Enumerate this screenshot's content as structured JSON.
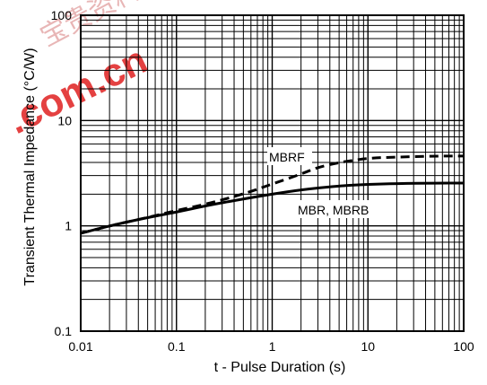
{
  "watermark": {
    "text": ".com.cn",
    "chars": "宝贵资料"
  },
  "chart_data": {
    "type": "line",
    "title": "",
    "xlabel": "t - Pulse Duration (s)",
    "ylabel": "Transient Thermal Impedance (°C/W)",
    "xscale": "log",
    "yscale": "log",
    "xlim": [
      0.01,
      100
    ],
    "ylim": [
      0.1,
      100
    ],
    "grid": true,
    "x_ticks": [
      {
        "value": 0.01,
        "label": "0.01"
      },
      {
        "value": 0.1,
        "label": "0.1"
      },
      {
        "value": 1,
        "label": "1"
      },
      {
        "value": 10,
        "label": "10"
      },
      {
        "value": 100,
        "label": "100"
      }
    ],
    "y_ticks": [
      {
        "value": 0.1,
        "label": "0.1"
      },
      {
        "value": 1,
        "label": "1"
      },
      {
        "value": 10,
        "label": "10"
      },
      {
        "value": 100,
        "label": "100"
      }
    ],
    "series": [
      {
        "name": "MBRF",
        "style": "dashed",
        "color": "#000000",
        "x": [
          0.01,
          0.02,
          0.05,
          0.1,
          0.2,
          0.5,
          1,
          2,
          3,
          5,
          10,
          20,
          50,
          100
        ],
        "y": [
          0.85,
          1.0,
          1.2,
          1.4,
          1.6,
          2.0,
          2.5,
          3.1,
          3.6,
          4.0,
          4.4,
          4.5,
          4.6,
          4.6
        ]
      },
      {
        "name": "MBR, MBRB",
        "style": "solid",
        "color": "#000000",
        "x": [
          0.01,
          0.02,
          0.05,
          0.1,
          0.2,
          0.5,
          1,
          2,
          5,
          10,
          20,
          50,
          100
        ],
        "y": [
          0.85,
          1.0,
          1.2,
          1.35,
          1.55,
          1.8,
          2.0,
          2.2,
          2.4,
          2.48,
          2.52,
          2.55,
          2.55
        ]
      }
    ]
  }
}
